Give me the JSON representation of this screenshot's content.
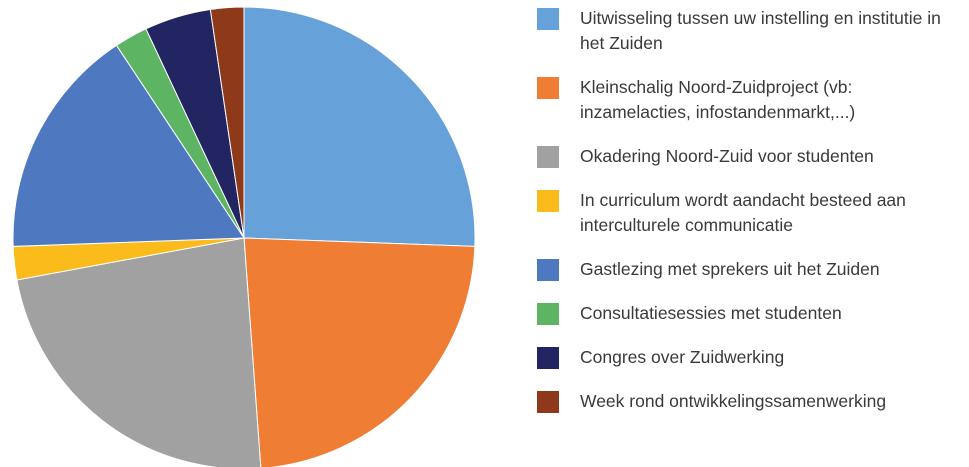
{
  "chart_data": {
    "type": "pie",
    "categories": [
      "Uitwisseling tussen uw instelling en institutie in het Zuiden",
      "Kleinschalig Noord-Zuidproject (vb: inzamelacties, infostandenmarkt,...)",
      "Okadering Noord-Zuid voor studenten",
      "In curriculum wordt aandacht besteed aan interculturele communicatie",
      "Gastlezing met sprekers uit het Zuiden",
      "Consultatiesessies met studenten",
      "Congres over Zuidwerking",
      "Week rond ontwikkelingssamenwerking"
    ],
    "values": [
      11,
      10,
      10,
      1,
      7,
      1,
      2,
      1
    ],
    "colors": [
      "#66a1d9",
      "#ef7d34",
      "#a1a1a1",
      "#fbbb1b",
      "#4e79c1",
      "#5db564",
      "#232563",
      "#8e3a1a"
    ],
    "legend": "right"
  }
}
